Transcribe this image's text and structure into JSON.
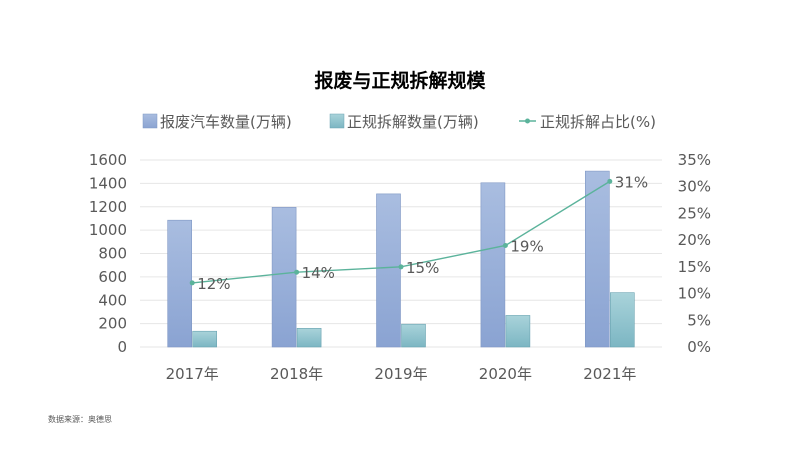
{
  "chart_data": {
    "type": "bar",
    "title": "报废与正规拆解规模",
    "categories": [
      "2017年",
      "2018年",
      "2019年",
      "2020年",
      "2021年"
    ],
    "series": [
      {
        "name": "报废汽车数量(万辆)",
        "type": "bar",
        "axis": "left",
        "values": [
          1085,
          1195,
          1310,
          1405,
          1505
        ],
        "color": "#8FA9D6"
      },
      {
        "name": "正规拆解数量(万辆)",
        "type": "bar",
        "axis": "left",
        "values": [
          135,
          160,
          195,
          270,
          465
        ],
        "color": "#7FBAC6"
      },
      {
        "name": "正规拆解占比(%)",
        "type": "line",
        "axis": "right",
        "values": [
          12,
          14,
          15,
          19,
          31
        ],
        "labels": [
          "12%",
          "14%",
          "15%",
          "19%",
          "31%"
        ],
        "color": "#5BB39B"
      }
    ],
    "y_left": {
      "min": 0,
      "max": 1600,
      "ticks": [
        "0",
        "200",
        "400",
        "600",
        "800",
        "1000",
        "1200",
        "1400",
        "1600"
      ]
    },
    "y_right": {
      "min": 0,
      "max": 35,
      "ticks": [
        "0%",
        "5%",
        "10%",
        "15%",
        "20%",
        "25%",
        "30%",
        "35%"
      ]
    },
    "grid": true,
    "legend_position": "top"
  },
  "source": "数据来源：奥德思"
}
